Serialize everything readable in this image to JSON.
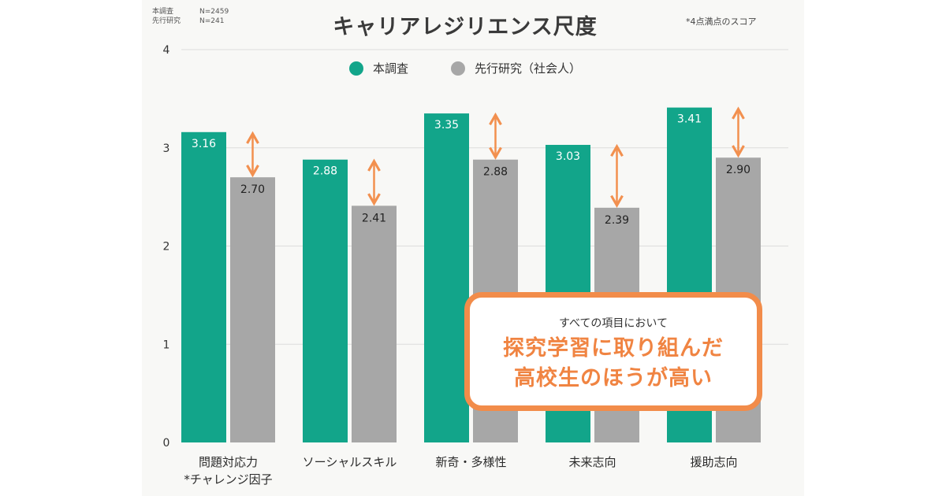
{
  "header": {
    "title": "キャリアレジリエンス尺度",
    "score_note": "*4点満点のスコア",
    "sample_info": [
      {
        "label": "本調査",
        "n": "N=2459"
      },
      {
        "label": "先行研究",
        "n": "N=241"
      }
    ]
  },
  "callout": {
    "small": "すべての項目において",
    "line1": "探究学習に取り組んだ",
    "line2": "高校生のほうが高い"
  },
  "colors": {
    "this_survey": "#12a58a",
    "prior_study": "#a7a7a7",
    "arrow": "#f2904f",
    "callout_border": "#f28c4a"
  },
  "chart_data": {
    "type": "bar",
    "title": "キャリアレジリエンス尺度",
    "categories": [
      [
        "問題対応力",
        "*チャレンジ因子"
      ],
      [
        "ソーシャルスキル"
      ],
      [
        "新奇・多様性"
      ],
      [
        "未来志向"
      ],
      [
        "援助志向"
      ]
    ],
    "series": [
      {
        "name": "本調査",
        "values": [
          3.16,
          2.88,
          3.35,
          3.03,
          3.41
        ],
        "labels": [
          "3.16",
          "2.88",
          "3.35",
          "3.03",
          "3.41"
        ]
      },
      {
        "name": "先行研究（社会人）",
        "values": [
          2.7,
          2.41,
          2.88,
          2.39,
          2.9
        ],
        "labels": [
          "2.70",
          "2.41",
          "2.88",
          "2.39",
          "2.90"
        ]
      }
    ],
    "ylim": [
      0,
      4
    ],
    "yticks": [
      "0",
      "1",
      "2",
      "3",
      "4"
    ],
    "grid": true,
    "legend": "top-center",
    "xlabel": "",
    "ylabel": ""
  }
}
